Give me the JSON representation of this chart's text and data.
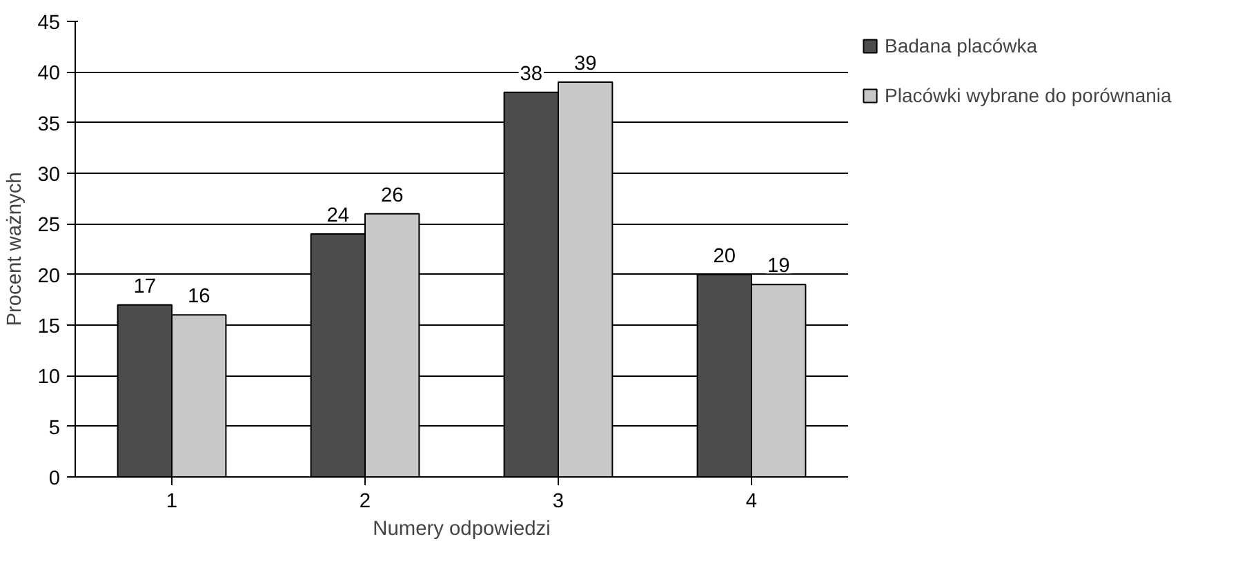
{
  "chart_data": {
    "type": "bar",
    "xlabel": "Numery odpowiedzi",
    "ylabel": "Procent ważnych",
    "categories": [
      "1",
      "2",
      "3",
      "4"
    ],
    "series": [
      {
        "name": "Badana placówka",
        "color": "#4d4d4d",
        "values": [
          17,
          24,
          38,
          20
        ]
      },
      {
        "name": "Placówki wybrane do porównania",
        "color": "#c8c8c8",
        "values": [
          16,
          26,
          39,
          19
        ]
      }
    ],
    "ylim": [
      0,
      45
    ],
    "yticks": [
      0,
      5,
      10,
      15,
      20,
      25,
      30,
      35,
      40,
      45
    ],
    "grid": "y",
    "legend": "right",
    "data_labels": true
  }
}
